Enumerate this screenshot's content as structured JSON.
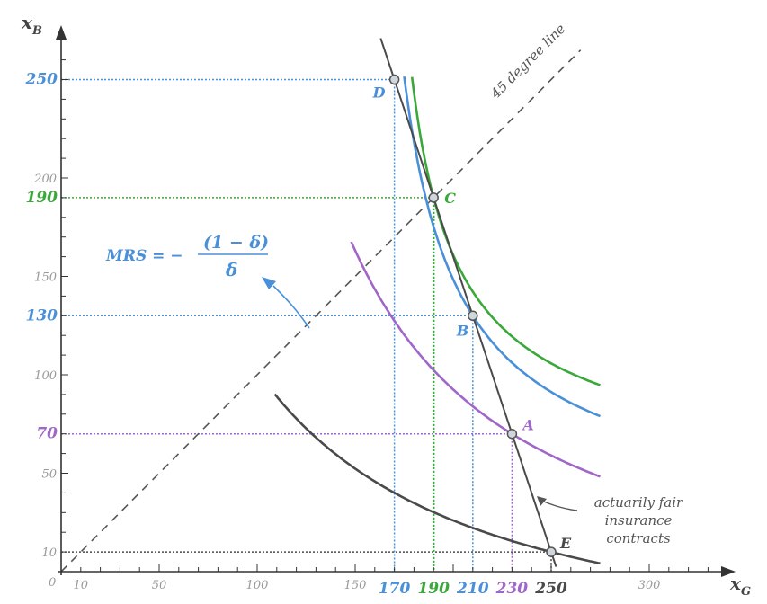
{
  "colors": {
    "blue": "#4a90d9",
    "green": "#3aa83a",
    "purple": "#a066c8",
    "dark": "#4a4a4a",
    "gray_text": "#9a9a9a"
  },
  "axes": {
    "x_label": "x",
    "x_sub": "G",
    "y_label": "x",
    "y_sub": "B",
    "origin": "0"
  },
  "x_ticks": [
    {
      "value": 10,
      "label": "10",
      "style": "gray"
    },
    {
      "value": 50,
      "label": "50",
      "style": "gray"
    },
    {
      "value": 100,
      "label": "100",
      "style": "gray"
    },
    {
      "value": 150,
      "label": "150",
      "style": "gray"
    },
    {
      "value": 170,
      "label": "170",
      "style": "blue"
    },
    {
      "value": 190,
      "label": "190",
      "style": "green"
    },
    {
      "value": 210,
      "label": "210",
      "style": "blue"
    },
    {
      "value": 230,
      "label": "230",
      "style": "purple"
    },
    {
      "value": 250,
      "label": "250",
      "style": "dark"
    },
    {
      "value": 300,
      "label": "300",
      "style": "gray"
    }
  ],
  "y_ticks": [
    {
      "value": 250,
      "label": "250",
      "style": "blue"
    },
    {
      "value": 200,
      "label": "200",
      "style": "gray"
    },
    {
      "value": 190,
      "label": "190",
      "style": "green"
    },
    {
      "value": 150,
      "label": "150",
      "style": "gray"
    },
    {
      "value": 130,
      "label": "130",
      "style": "blue"
    },
    {
      "value": 100,
      "label": "100",
      "style": "gray"
    },
    {
      "value": 70,
      "label": "70",
      "style": "purple"
    },
    {
      "value": 50,
      "label": "50",
      "style": "gray"
    },
    {
      "value": 10,
      "label": "10",
      "style": "gray"
    }
  ],
  "points": [
    {
      "id": "D",
      "label": "D",
      "x": 170,
      "y": 250,
      "color": "blue"
    },
    {
      "id": "C",
      "label": "C",
      "x": 190,
      "y": 190,
      "color": "green"
    },
    {
      "id": "B",
      "label": "B",
      "x": 210,
      "y": 130,
      "color": "blue"
    },
    {
      "id": "A",
      "label": "A",
      "x": 230,
      "y": 70,
      "color": "purple"
    },
    {
      "id": "E",
      "label": "E",
      "x": 250,
      "y": 10,
      "color": "dark"
    }
  ],
  "diagonal_label": "45 degree line",
  "fair_line_label": [
    "actuarily fair",
    "insurance",
    "contracts"
  ],
  "mrs": {
    "lhs": "MRS = −",
    "numerator": "(1 − δ)",
    "denominator": "δ"
  }
}
